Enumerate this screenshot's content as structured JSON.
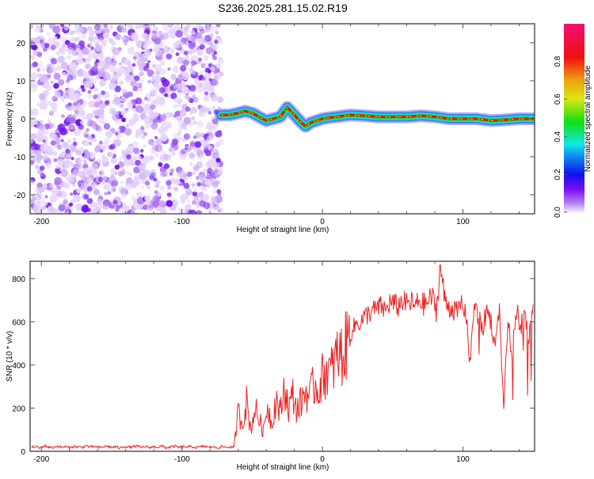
{
  "title": "S236.2025.281.15.02.R19",
  "colors": {
    "snr_line": "#ee2222",
    "axis": "#555555"
  },
  "chart_data": [
    {
      "type": "heatmap",
      "name": "spectrogram",
      "xlabel": "Height of straight line (km)",
      "ylabel": "Frequency (Hz)",
      "xlim": [
        -208,
        151
      ],
      "ylim": [
        -25,
        25
      ],
      "xticks": [
        -200,
        -100,
        0,
        100
      ],
      "xtick_labels": [
        "-200",
        "-100",
        "0",
        "100"
      ],
      "yticks": [
        20,
        10,
        0,
        -10,
        -20
      ],
      "ytick_labels": [
        "20",
        "10",
        "0",
        "-10",
        "-20"
      ],
      "noise_region_km": [
        -208,
        -72
      ],
      "ridge": {
        "x": [
          -72,
          -66,
          -60,
          -55,
          -50,
          -45,
          -40,
          -35,
          -30,
          -25,
          -20,
          -15,
          -12,
          -8,
          -4,
          0,
          5,
          10,
          20,
          30,
          40,
          50,
          60,
          70,
          80,
          90,
          100,
          110,
          120,
          130,
          140,
          150
        ],
        "freq": [
          1,
          1,
          1.5,
          2,
          1.5,
          0.5,
          -0.5,
          0,
          0.5,
          3,
          1,
          -1,
          -2,
          -1,
          -0.5,
          0,
          0.3,
          0.5,
          1,
          0.8,
          0.5,
          0.5,
          0.5,
          0.8,
          0.5,
          0,
          0,
          0,
          -0.5,
          -0.3,
          0,
          0
        ]
      },
      "colorbar": {
        "label": "Normalized spectral amplitude",
        "ticks": [
          0.0,
          0.2,
          0.4,
          0.6,
          0.8
        ],
        "tick_labels": [
          "0.0",
          "0.2",
          "0.4",
          "0.6",
          "0.8"
        ],
        "range": [
          0,
          1
        ]
      }
    },
    {
      "type": "line",
      "name": "snr",
      "xlabel": "Height of straight line (km)",
      "ylabel": "SNR (10 * v/v)",
      "xlim": [
        -208,
        151
      ],
      "ylim": [
        0,
        880
      ],
      "xticks": [
        -200,
        -100,
        0,
        100
      ],
      "xtick_labels": [
        "-200",
        "-100",
        "0",
        "100"
      ],
      "yticks": [
        0,
        200,
        400,
        600,
        800
      ],
      "ytick_labels": [
        "0",
        "200",
        "400",
        "600",
        "800"
      ],
      "x_start": -207,
      "x_step": 3,
      "values": [
        18,
        22,
        15,
        25,
        20,
        17,
        24,
        19,
        21,
        16,
        23,
        20,
        18,
        26,
        19,
        22,
        17,
        20,
        24,
        18,
        21,
        15,
        23,
        19,
        20,
        25,
        17,
        22,
        18,
        21,
        19,
        24,
        16,
        20,
        23,
        18,
        21,
        19,
        22,
        17,
        20,
        24,
        18,
        21,
        16,
        22,
        19,
        20,
        18,
        180,
        130,
        230,
        100,
        200,
        150,
        90,
        220,
        120,
        250,
        170,
        300,
        200,
        260,
        190,
        230,
        280,
        250,
        310,
        290,
        340,
        380,
        360,
        420,
        450,
        440,
        520,
        560,
        590,
        600,
        620,
        640,
        650,
        660,
        670,
        650,
        690,
        680,
        670,
        700,
        680,
        690,
        670,
        700,
        680,
        690,
        720,
        650,
        860,
        700,
        670,
        660,
        640,
        690,
        650,
        400,
        680,
        620,
        560,
        660,
        600,
        480,
        650,
        200,
        600,
        450,
        660,
        580,
        640,
        520,
        680
      ]
    }
  ]
}
